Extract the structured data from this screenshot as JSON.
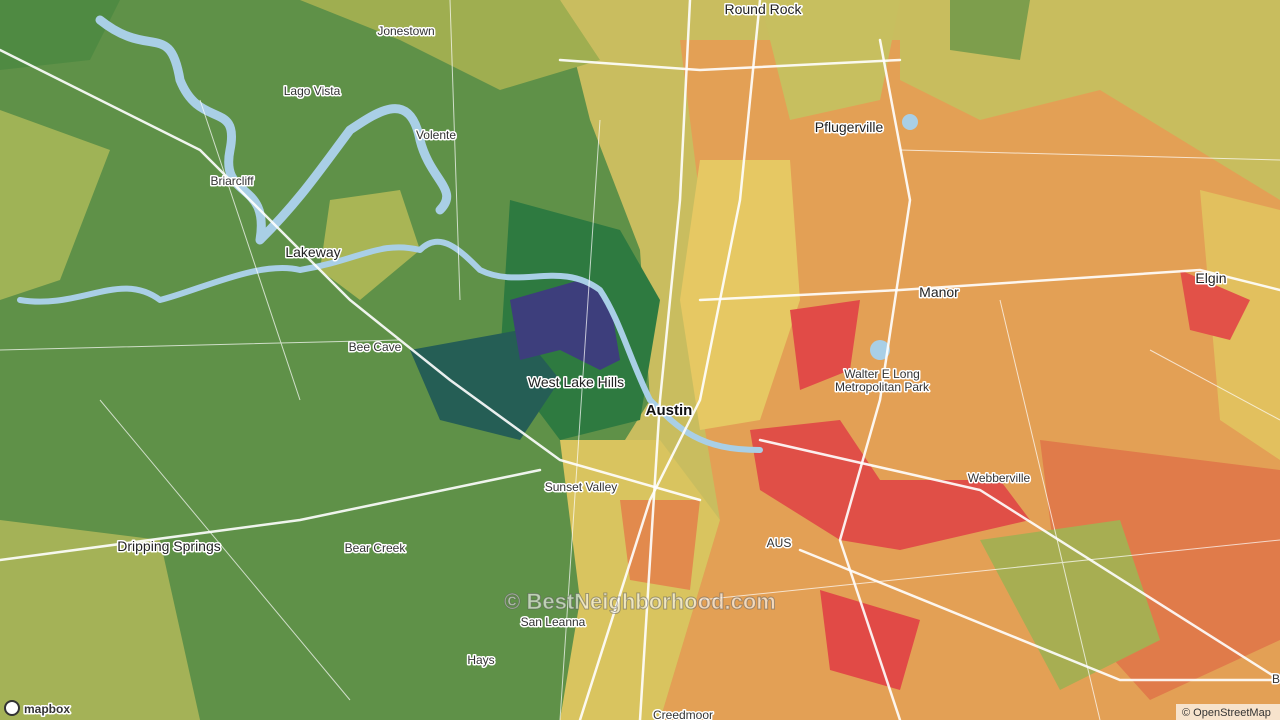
{
  "map": {
    "labels": [
      "Round Rock",
      "Jonestown",
      "Lago Vista",
      "Volente",
      "Briarcliff",
      "Pflugerville",
      "Lakeway",
      "Manor",
      "Elgin",
      "Bee Cave",
      "West Lake Hills",
      "Walter E Long",
      "Metropolitan Park",
      "Austin",
      "Webberville",
      "Sunset Valley",
      "AUS",
      "Dripping Springs",
      "Bear Creek",
      "San Leanna",
      "Hays",
      "Creedmoor",
      "B"
    ]
  },
  "watermark": "© BestNeighborhood.com",
  "logo": "mapbox",
  "attribution": "© OpenStreetMap"
}
